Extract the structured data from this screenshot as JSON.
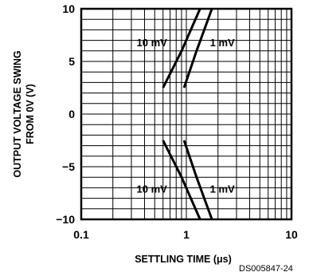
{
  "chart_data": {
    "type": "line",
    "xlabel": "SETTLING TIME (μs)",
    "ylabel_lines": [
      "OUTPUT VOLTAGE SWING",
      "FROM 0V (V)"
    ],
    "xscale": "log",
    "xlim": [
      0.1,
      10
    ],
    "ylim": [
      -10,
      10
    ],
    "x_ticks": [
      {
        "value": 0.1,
        "label": "0.1"
      },
      {
        "value": 1,
        "label": "1"
      },
      {
        "value": 10,
        "label": "10"
      }
    ],
    "y_ticks": [
      {
        "value": 10,
        "label": "10"
      },
      {
        "value": 5,
        "label": "5"
      },
      {
        "value": 0,
        "label": "0"
      },
      {
        "value": -5,
        "label": "−5"
      },
      {
        "value": -10,
        "label": "−10"
      }
    ],
    "grid": true,
    "series": [
      {
        "name": "10 mV",
        "segments": [
          [
            {
              "x": 0.6,
              "y": 2.5
            },
            {
              "x": 0.9,
              "y": 6
            },
            {
              "x": 1.35,
              "y": 10
            }
          ],
          [
            {
              "x": 0.6,
              "y": -2.5
            },
            {
              "x": 0.9,
              "y": -6
            },
            {
              "x": 1.35,
              "y": -10
            }
          ]
        ]
      },
      {
        "name": "1 mV",
        "segments": [
          [
            {
              "x": 0.95,
              "y": 2.5
            },
            {
              "x": 1.25,
              "y": 6
            },
            {
              "x": 1.75,
              "y": 10
            }
          ],
          [
            {
              "x": 0.95,
              "y": -2.5
            },
            {
              "x": 1.25,
              "y": -6
            },
            {
              "x": 1.75,
              "y": -10
            }
          ]
        ]
      }
    ],
    "annotations": [
      {
        "text": "10 mV",
        "x": 0.47,
        "y": 6.8
      },
      {
        "text": "1 mV",
        "x": 2.2,
        "y": 6.8
      },
      {
        "text": "10 mV",
        "x": 0.47,
        "y": -7.1
      },
      {
        "text": "1 mV",
        "x": 2.2,
        "y": -7.1
      }
    ]
  },
  "footer_text": "DS005847-24"
}
